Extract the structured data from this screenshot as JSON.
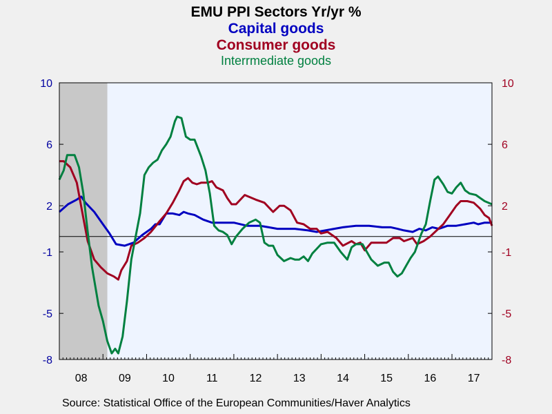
{
  "chart_data": {
    "type": "line",
    "title": "EMU PPI Sectors Yr/yr %",
    "subtitles": [
      "Capital goods",
      "Consumer goods",
      "Interrmediate goods"
    ],
    "source": "Source:  Statistical Office of the European Communities/Haver Analytics",
    "x_tick_labels": [
      "08",
      "09",
      "10",
      "11",
      "12",
      "13",
      "14",
      "15",
      "16",
      "17"
    ],
    "y_ticks": [
      10,
      6,
      2,
      -1,
      -5,
      -8
    ],
    "ylim": [
      -8,
      10
    ],
    "xlim": [
      2008.0,
      2017.917
    ],
    "shaded_region": [
      2008.0,
      2009.1
    ],
    "zero_line": 0,
    "colors": {
      "background": "#f0f0f0",
      "plot": "#eef4ff",
      "shade": "#c8c8c8",
      "left_axis": "#0000a0",
      "right_axis": "#a00020"
    },
    "series": [
      {
        "name": "Capital goods",
        "color": "#0000c0",
        "points": [
          [
            2008.0,
            1.6
          ],
          [
            2008.2,
            2.1
          ],
          [
            2008.4,
            2.4
          ],
          [
            2008.5,
            2.6
          ],
          [
            2008.6,
            2.2
          ],
          [
            2008.8,
            1.6
          ],
          [
            2009.0,
            0.8
          ],
          [
            2009.15,
            0.2
          ],
          [
            2009.3,
            -0.5
          ],
          [
            2009.5,
            -0.6
          ],
          [
            2009.7,
            -0.4
          ],
          [
            2009.9,
            0.1
          ],
          [
            2010.1,
            0.5
          ],
          [
            2010.2,
            0.8
          ],
          [
            2010.3,
            0.8
          ],
          [
            2010.45,
            1.5
          ],
          [
            2010.6,
            1.5
          ],
          [
            2010.75,
            1.4
          ],
          [
            2010.85,
            1.6
          ],
          [
            2010.95,
            1.5
          ],
          [
            2011.1,
            1.4
          ],
          [
            2011.3,
            1.1
          ],
          [
            2011.5,
            0.9
          ],
          [
            2011.7,
            0.9
          ],
          [
            2012.0,
            0.9
          ],
          [
            2012.3,
            0.7
          ],
          [
            2012.6,
            0.7
          ],
          [
            2012.8,
            0.6
          ],
          [
            2013.0,
            0.5
          ],
          [
            2013.4,
            0.5
          ],
          [
            2013.7,
            0.4
          ],
          [
            2013.9,
            0.3
          ],
          [
            2014.1,
            0.4
          ],
          [
            2014.3,
            0.5
          ],
          [
            2014.5,
            0.6
          ],
          [
            2014.8,
            0.7
          ],
          [
            2015.1,
            0.7
          ],
          [
            2015.4,
            0.6
          ],
          [
            2015.6,
            0.6
          ],
          [
            2015.75,
            0.5
          ],
          [
            2015.9,
            0.4
          ],
          [
            2016.1,
            0.3
          ],
          [
            2016.25,
            0.5
          ],
          [
            2016.4,
            0.4
          ],
          [
            2016.55,
            0.6
          ],
          [
            2016.7,
            0.5
          ],
          [
            2016.9,
            0.7
          ],
          [
            2017.1,
            0.7
          ],
          [
            2017.3,
            0.8
          ],
          [
            2017.5,
            0.9
          ],
          [
            2017.6,
            0.8
          ],
          [
            2017.75,
            0.9
          ],
          [
            2017.9,
            0.9
          ]
        ]
      },
      {
        "name": "Consumer goods",
        "color": "#a00020",
        "points": [
          [
            2008.0,
            4.9
          ],
          [
            2008.1,
            4.9
          ],
          [
            2008.25,
            4.5
          ],
          [
            2008.4,
            3.5
          ],
          [
            2008.55,
            1.2
          ],
          [
            2008.65,
            -0.3
          ],
          [
            2008.8,
            -1.5
          ],
          [
            2008.95,
            -2.0
          ],
          [
            2009.1,
            -2.4
          ],
          [
            2009.25,
            -2.6
          ],
          [
            2009.35,
            -2.8
          ],
          [
            2009.42,
            -2.2
          ],
          [
            2009.55,
            -1.6
          ],
          [
            2009.65,
            -0.6
          ],
          [
            2009.8,
            -0.4
          ],
          [
            2009.95,
            -0.1
          ],
          [
            2010.1,
            0.3
          ],
          [
            2010.3,
            1.0
          ],
          [
            2010.45,
            1.5
          ],
          [
            2010.6,
            2.2
          ],
          [
            2010.75,
            3.0
          ],
          [
            2010.85,
            3.6
          ],
          [
            2010.95,
            3.8
          ],
          [
            2011.05,
            3.5
          ],
          [
            2011.15,
            3.4
          ],
          [
            2011.25,
            3.5
          ],
          [
            2011.4,
            3.5
          ],
          [
            2011.5,
            3.6
          ],
          [
            2011.6,
            3.2
          ],
          [
            2011.75,
            3.0
          ],
          [
            2011.85,
            2.5
          ],
          [
            2011.95,
            2.1
          ],
          [
            2012.05,
            2.1
          ],
          [
            2012.25,
            2.7
          ],
          [
            2012.5,
            2.4
          ],
          [
            2012.7,
            2.2
          ],
          [
            2012.9,
            1.6
          ],
          [
            2013.05,
            2.0
          ],
          [
            2013.15,
            2.0
          ],
          [
            2013.3,
            1.7
          ],
          [
            2013.45,
            0.9
          ],
          [
            2013.6,
            0.8
          ],
          [
            2013.75,
            0.5
          ],
          [
            2013.9,
            0.5
          ],
          [
            2014.0,
            0.2
          ],
          [
            2014.15,
            0.3
          ],
          [
            2014.35,
            -0.1
          ],
          [
            2014.5,
            -0.6
          ],
          [
            2014.7,
            -0.3
          ],
          [
            2014.8,
            -0.5
          ],
          [
            2014.9,
            -0.4
          ],
          [
            2015.0,
            -0.9
          ],
          [
            2015.15,
            -0.4
          ],
          [
            2015.3,
            -0.4
          ],
          [
            2015.5,
            -0.4
          ],
          [
            2015.65,
            -0.1
          ],
          [
            2015.8,
            -0.1
          ],
          [
            2015.9,
            -0.3
          ],
          [
            2016.1,
            -0.1
          ],
          [
            2016.2,
            -0.5
          ],
          [
            2016.35,
            -0.3
          ],
          [
            2016.5,
            0.0
          ],
          [
            2016.65,
            0.4
          ],
          [
            2016.8,
            0.8
          ],
          [
            2016.95,
            1.4
          ],
          [
            2017.1,
            2.0
          ],
          [
            2017.2,
            2.3
          ],
          [
            2017.35,
            2.3
          ],
          [
            2017.5,
            2.2
          ],
          [
            2017.65,
            1.8
          ],
          [
            2017.75,
            1.4
          ],
          [
            2017.85,
            1.2
          ],
          [
            2017.917,
            0.7
          ]
        ]
      },
      {
        "name": "Interrmediate goods",
        "color": "#008040",
        "points": [
          [
            2008.0,
            3.7
          ],
          [
            2008.1,
            4.3
          ],
          [
            2008.18,
            5.3
          ],
          [
            2008.35,
            5.3
          ],
          [
            2008.45,
            4.5
          ],
          [
            2008.55,
            2.8
          ],
          [
            2008.65,
            0.3
          ],
          [
            2008.75,
            -2.0
          ],
          [
            2008.9,
            -4.5
          ],
          [
            2009.0,
            -5.5
          ],
          [
            2009.1,
            -6.8
          ],
          [
            2009.2,
            -7.6
          ],
          [
            2009.28,
            -7.3
          ],
          [
            2009.35,
            -7.6
          ],
          [
            2009.45,
            -6.5
          ],
          [
            2009.55,
            -4.2
          ],
          [
            2009.65,
            -1.5
          ],
          [
            2009.75,
            0.0
          ],
          [
            2009.85,
            1.5
          ],
          [
            2009.95,
            4.0
          ],
          [
            2010.05,
            4.5
          ],
          [
            2010.15,
            4.8
          ],
          [
            2010.25,
            5.0
          ],
          [
            2010.35,
            5.6
          ],
          [
            2010.45,
            6.0
          ],
          [
            2010.55,
            6.5
          ],
          [
            2010.65,
            7.5
          ],
          [
            2010.7,
            7.8
          ],
          [
            2010.8,
            7.7
          ],
          [
            2010.9,
            6.5
          ],
          [
            2011.0,
            6.3
          ],
          [
            2011.1,
            6.3
          ],
          [
            2011.25,
            5.2
          ],
          [
            2011.35,
            4.3
          ],
          [
            2011.45,
            2.8
          ],
          [
            2011.55,
            0.7
          ],
          [
            2011.65,
            0.4
          ],
          [
            2011.75,
            0.3
          ],
          [
            2011.85,
            0.1
          ],
          [
            2011.95,
            -0.5
          ],
          [
            2012.05,
            0.0
          ],
          [
            2012.2,
            0.5
          ],
          [
            2012.35,
            0.9
          ],
          [
            2012.5,
            1.1
          ],
          [
            2012.6,
            0.9
          ],
          [
            2012.7,
            -0.4
          ],
          [
            2012.8,
            -0.6
          ],
          [
            2012.9,
            -0.6
          ],
          [
            2013.0,
            -1.2
          ],
          [
            2013.15,
            -1.6
          ],
          [
            2013.3,
            -1.4
          ],
          [
            2013.4,
            -1.5
          ],
          [
            2013.5,
            -1.5
          ],
          [
            2013.6,
            -1.3
          ],
          [
            2013.7,
            -1.6
          ],
          [
            2013.8,
            -1.1
          ],
          [
            2013.9,
            -0.8
          ],
          [
            2014.0,
            -0.5
          ],
          [
            2014.15,
            -0.4
          ],
          [
            2014.3,
            -0.4
          ],
          [
            2014.45,
            -1.0
          ],
          [
            2014.6,
            -1.5
          ],
          [
            2014.7,
            -0.7
          ],
          [
            2014.8,
            -0.5
          ],
          [
            2014.95,
            -0.5
          ],
          [
            2015.05,
            -1.0
          ],
          [
            2015.15,
            -1.5
          ],
          [
            2015.3,
            -1.9
          ],
          [
            2015.45,
            -1.7
          ],
          [
            2015.55,
            -1.7
          ],
          [
            2015.65,
            -2.3
          ],
          [
            2015.75,
            -2.6
          ],
          [
            2015.85,
            -2.4
          ],
          [
            2015.95,
            -1.9
          ],
          [
            2016.05,
            -1.4
          ],
          [
            2016.15,
            -1.0
          ],
          [
            2016.3,
            0.2
          ],
          [
            2016.4,
            0.8
          ],
          [
            2016.5,
            2.3
          ],
          [
            2016.6,
            3.7
          ],
          [
            2016.68,
            3.9
          ],
          [
            2016.8,
            3.4
          ],
          [
            2016.9,
            2.9
          ],
          [
            2017.0,
            2.8
          ],
          [
            2017.1,
            3.2
          ],
          [
            2017.2,
            3.5
          ],
          [
            2017.3,
            3.0
          ],
          [
            2017.4,
            2.8
          ],
          [
            2017.55,
            2.7
          ],
          [
            2017.65,
            2.5
          ],
          [
            2017.75,
            2.3
          ],
          [
            2017.917,
            2.1
          ]
        ]
      }
    ]
  }
}
